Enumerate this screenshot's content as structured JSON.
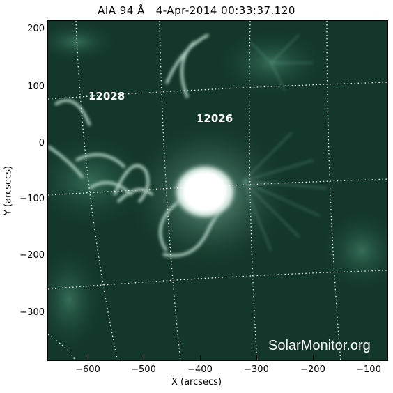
{
  "title": "AIA 94 Å   4-Apr-2014 00:33:37.120",
  "axes": {
    "x_label": "X (arcsecs)",
    "y_label": "Y (arcsecs)",
    "x_ticks": [
      "−600",
      "−500",
      "−400",
      "−300",
      "−200",
      "−100"
    ],
    "y_ticks": [
      "200",
      "100",
      "0",
      "−100",
      "−200",
      "−300"
    ]
  },
  "regions": [
    "12028",
    "12026"
  ],
  "watermark": "SolarMonitor.org",
  "colors": {
    "background": "#13382b",
    "bright": "#ffffff"
  }
}
